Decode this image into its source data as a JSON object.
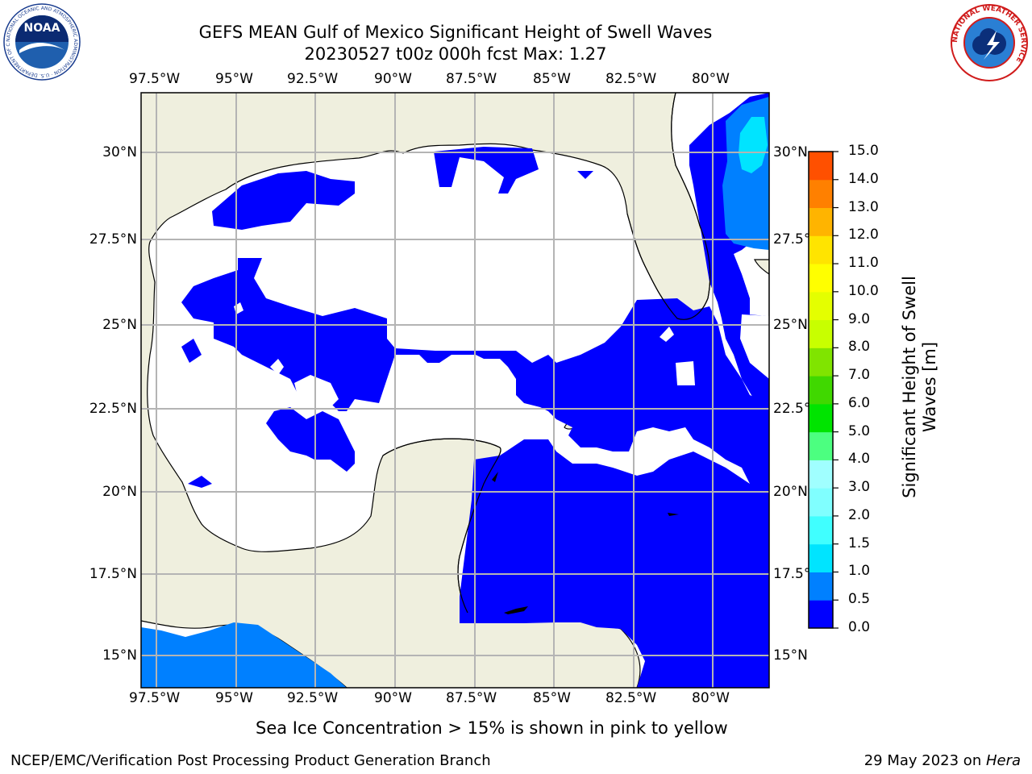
{
  "header": {
    "title_line1": "GEFS MEAN Gulf of Mexico Significant Height of Swell Waves",
    "title_line2": "20230527 t00z 000h fcst   Max: 1.27"
  },
  "logos": {
    "noaa_text": "NOAA",
    "noaa_ring_text": "NATIONAL OCEANIC AND ATMOSPHERIC ADMINISTRATION · U.S. DEPARTMENT OF COMMERCE",
    "nws_ring_text": "NATIONAL WEATHER SERVICE"
  },
  "map": {
    "lon_labels": [
      "97.5°W",
      "95°W",
      "92.5°W",
      "90°W",
      "87.5°W",
      "85°W",
      "82.5°W",
      "80°W"
    ],
    "lat_labels": [
      "30°N",
      "27.5°N",
      "25°N",
      "22.5°N",
      "20°N",
      "17.5°N",
      "15°N"
    ],
    "land_color": "#efefde",
    "ocean_color": "#ffffff",
    "grid_color": "#b4b4b4"
  },
  "colorbar": {
    "label_line1": "Significant Height of Swell",
    "label_line2": "Waves [m]",
    "ticks": [
      "0.0",
      "0.5",
      "1.0",
      "1.5",
      "2.0",
      "3.0",
      "4.0",
      "5.0",
      "6.0",
      "7.0",
      "8.0",
      "9.0",
      "10.0",
      "11.0",
      "12.0",
      "13.0",
      "14.0",
      "15.0"
    ],
    "colors": [
      "#0000ff",
      "#0080ff",
      "#00e4ff",
      "#40ffff",
      "#80ffff",
      "#a0ffff",
      "#4cff80",
      "#00e400",
      "#40d800",
      "#80e400",
      "#c8ff00",
      "#e4ff00",
      "#ffff00",
      "#ffe400",
      "#ffb400",
      "#ff8000",
      "#ff5000",
      "#ff2000",
      "#ff0000"
    ]
  },
  "note": "Sea Ice Concentration > 15% is shown in pink to yellow",
  "footer": {
    "left": "NCEP/EMC/Verification Post Processing Product Generation Branch",
    "right_prefix": "29 May 2023 on ",
    "right_italic": "Hera"
  }
}
